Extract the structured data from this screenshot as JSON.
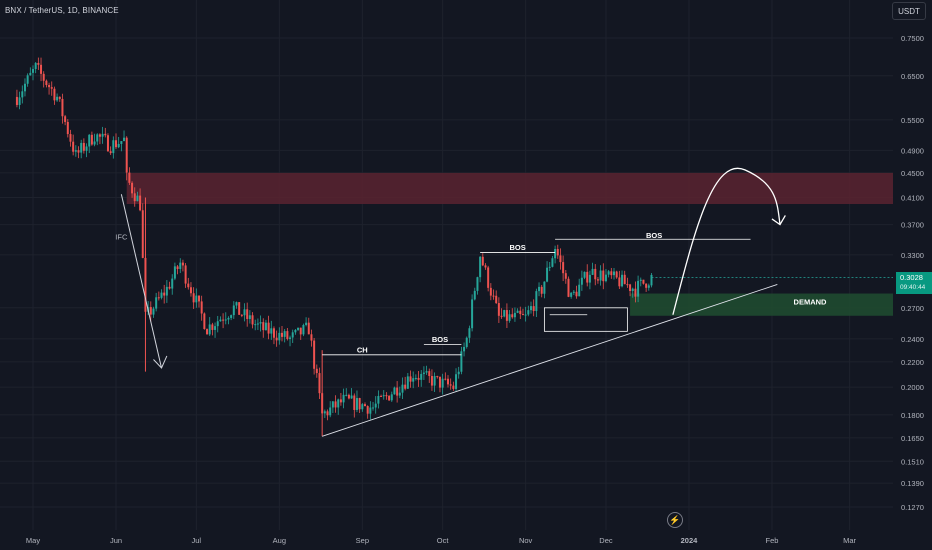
{
  "header": {
    "symbol_title": "BNX / TetherUS, 1D, BINANCE",
    "currency": "USDT"
  },
  "price_tag": {
    "price": "0.3028",
    "countdown": "09:40:44"
  },
  "event_icon": "lightning-icon",
  "colors": {
    "background": "#131722",
    "up_candle": "#26a69a",
    "down_candle": "#ef5350",
    "supply_zone": "#5b2330",
    "demand_zone": "#1f4a30",
    "annotation": "#ffffff",
    "axis_text": "#b2b5be"
  },
  "chart_data": {
    "type": "candlestick",
    "symbol": "BNX / TetherUS",
    "interval": "1D",
    "exchange": "BINANCE",
    "y_scale": "log",
    "ylim": [
      0.11,
      0.85
    ],
    "y_ticks": [
      "0.7500",
      "0.6500",
      "0.5500",
      "0.4900",
      "0.4500",
      "0.4100",
      "0.3700",
      "0.3300",
      "0.3028",
      "0.2700",
      "0.2400",
      "0.2200",
      "0.2000",
      "0.1800",
      "0.1650",
      "0.1510",
      "0.1390",
      "0.1270"
    ],
    "x_ticks": [
      "May",
      "Jun",
      "Jul",
      "Aug",
      "Sep",
      "Oct",
      "Nov",
      "Dec",
      "2024",
      "Feb",
      "Mar"
    ],
    "last_price": 0.3028,
    "ohlc_anchors": [
      {
        "date": "2023-04-25",
        "price": 0.6
      },
      {
        "date": "2023-05-02",
        "price": 0.67
      },
      {
        "date": "2023-05-10",
        "price": 0.6
      },
      {
        "date": "2023-05-17",
        "price": 0.48
      },
      {
        "date": "2023-05-24",
        "price": 0.52
      },
      {
        "date": "2023-05-30",
        "price": 0.5
      },
      {
        "date": "2023-06-04",
        "price": 0.51
      },
      {
        "date": "2023-06-05",
        "price": 0.44
      },
      {
        "date": "2023-06-10",
        "price": 0.4
      },
      {
        "date": "2023-06-12",
        "price": 0.26
      },
      {
        "date": "2023-06-20",
        "price": 0.29
      },
      {
        "date": "2023-06-25",
        "price": 0.32
      },
      {
        "date": "2023-07-05",
        "price": 0.25
      },
      {
        "date": "2023-07-15",
        "price": 0.27
      },
      {
        "date": "2023-07-25",
        "price": 0.25
      },
      {
        "date": "2023-08-05",
        "price": 0.24
      },
      {
        "date": "2023-08-12",
        "price": 0.25
      },
      {
        "date": "2023-08-17",
        "price": 0.18
      },
      {
        "date": "2023-08-25",
        "price": 0.19
      },
      {
        "date": "2023-09-05",
        "price": 0.185
      },
      {
        "date": "2023-09-20",
        "price": 0.21
      },
      {
        "date": "2023-10-05",
        "price": 0.2
      },
      {
        "date": "2023-10-10",
        "price": 0.24
      },
      {
        "date": "2023-10-15",
        "price": 0.33
      },
      {
        "date": "2023-10-22",
        "price": 0.26
      },
      {
        "date": "2023-11-01",
        "price": 0.26
      },
      {
        "date": "2023-11-07",
        "price": 0.29
      },
      {
        "date": "2023-11-12",
        "price": 0.34
      },
      {
        "date": "2023-11-18",
        "price": 0.28
      },
      {
        "date": "2023-11-25",
        "price": 0.31
      },
      {
        "date": "2023-12-05",
        "price": 0.3
      },
      {
        "date": "2023-12-12",
        "price": 0.29
      },
      {
        "date": "2023-12-18",
        "price": 0.303
      }
    ],
    "annotations": {
      "supply_zone": {
        "price_top": 0.45,
        "price_bottom": 0.4
      },
      "demand_zone": {
        "label": "DEMAND",
        "price_top": 0.285,
        "price_bottom": 0.262
      },
      "labels": [
        "IFC",
        "CH",
        "BOS",
        "BOS",
        "BOS"
      ],
      "trendline": {
        "from": {
          "date": "2023-08-17",
          "price": 0.166
        },
        "to": {
          "date": "2024-02-03",
          "price": 0.295
        }
      },
      "projection": "curved arrow up into supply zone then down"
    }
  }
}
